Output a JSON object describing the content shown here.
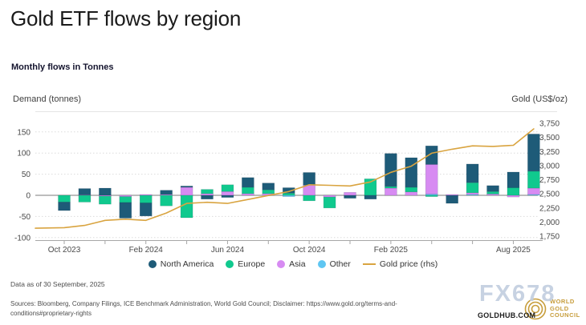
{
  "header": {
    "title": "Gold ETF flows by region",
    "subtitle": "Monthly flows in Tonnes"
  },
  "axes": {
    "left_title": "Demand (tonnes)",
    "right_title": "Gold (US$/oz)"
  },
  "chart_data": {
    "type": "bar+line",
    "title": "Gold ETF flows by region",
    "categories": [
      "Oct 2023",
      "Nov 2023",
      "Dec 2023",
      "Jan 2024",
      "Feb 2024",
      "Mar 2024",
      "Apr 2024",
      "May 2024",
      "Jun 2024",
      "Jul 2024",
      "Aug 2024",
      "Sep 2024",
      "Oct 2024",
      "Nov 2024",
      "Dec 2024",
      "Jan 2025",
      "Feb 2025",
      "Mar 2025",
      "Apr 2025",
      "May 2025",
      "Jun 2025",
      "Jul 2025",
      "Aug 2025",
      "Sep 2025"
    ],
    "series": [
      {
        "name": "North America",
        "color": "#1E5B78",
        "values": [
          -20,
          15,
          17,
          -37,
          -31,
          10,
          3,
          -9,
          -5,
          23,
          16,
          13,
          30,
          0,
          -7,
          -9,
          78,
          70,
          44,
          -19,
          44,
          14,
          37,
          88
        ]
      },
      {
        "name": "Europe",
        "color": "#10C98E",
        "values": [
          -16,
          -16,
          -19,
          -14,
          -18,
          -25,
          -53,
          10,
          16,
          15,
          9,
          5,
          -13,
          -26,
          0,
          39,
          4,
          11,
          -3,
          0,
          24,
          6,
          18,
          40
        ]
      },
      {
        "name": "Asia",
        "color": "#D78BF2",
        "values": [
          0,
          1,
          -2,
          -3,
          2,
          2,
          19,
          4,
          9,
          4,
          4,
          0,
          24,
          -4,
          7,
          0,
          17,
          8,
          70,
          2,
          4,
          3,
          -4,
          15
        ]
      },
      {
        "name": "Other",
        "color": "#5FC6F2",
        "values": [
          0,
          0,
          0,
          0,
          0,
          0,
          0,
          0,
          0,
          0,
          0,
          -3,
          0,
          0,
          0,
          0,
          0,
          0,
          3,
          0,
          2,
          0,
          0,
          2
        ]
      }
    ],
    "line_series": {
      "name": "Gold price (rhs)",
      "color": "#D9A440",
      "values": [
        1900,
        1940,
        2030,
        2050,
        2030,
        2160,
        2330,
        2350,
        2330,
        2400,
        2470,
        2540,
        2660,
        2650,
        2640,
        2710,
        2880,
        2990,
        3220,
        3290,
        3350,
        3340,
        3360,
        3650
      ]
    },
    "left_axis": {
      "label": "Demand (tonnes)",
      "ticks": [
        150,
        100,
        50,
        0,
        -50,
        -100
      ],
      "range": [
        -100,
        150
      ]
    },
    "right_axis": {
      "label": "Gold (US$/oz)",
      "ticks": [
        3750,
        3500,
        3250,
        3000,
        2750,
        2500,
        2250,
        2000,
        1750
      ],
      "range": [
        1750,
        3750
      ]
    },
    "x_tick_labels": [
      "Oct 2023",
      "Feb 2024",
      "Jun 2024",
      "Oct 2024",
      "Feb 2025",
      "Aug 2025"
    ],
    "x_label_positions": [
      0,
      4,
      8,
      12,
      16,
      22
    ],
    "grid": "horizontal-dotted",
    "legend_position": "bottom"
  },
  "legend": {
    "items": [
      {
        "label": "North America",
        "color": "#1E5B78",
        "type": "dot"
      },
      {
        "label": "Europe",
        "color": "#10C98E",
        "type": "dot"
      },
      {
        "label": "Asia",
        "color": "#D78BF2",
        "type": "dot"
      },
      {
        "label": "Other",
        "color": "#5FC6F2",
        "type": "dot"
      },
      {
        "label": "Gold price (rhs)",
        "color": "#D9A440",
        "type": "line"
      }
    ]
  },
  "footer": {
    "data_as_of": "Data as of 30 September, 2025",
    "sources": "Sources: Bloomberg, Company Filings, ICE Benchmark Administration, World Gold Council; Disclaimer: https://www.gold.org/terms-and-conditions#proprietary-rights"
  },
  "branding": {
    "watermark": "FX678",
    "logo_line1": "WORLD",
    "logo_line2": "GOLD",
    "logo_line3": "COUNCIL",
    "site": "GOLDHUB.COM",
    "gold_color": "#c79d3b"
  }
}
